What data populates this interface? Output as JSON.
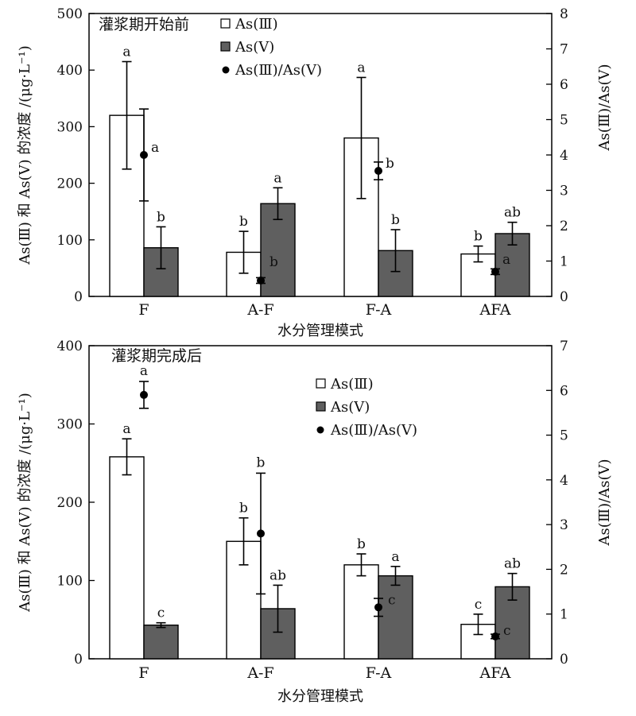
{
  "charts": [
    {
      "title": "灌浆期开始前",
      "xlabel": "水分管理模式",
      "ylabel": "As(Ⅲ) 和 As(Ⅴ) 的浓度 /(μg·L⁻¹)",
      "y2label": "As(Ⅲ)/As(Ⅴ)",
      "legend": [
        "As(Ⅲ)",
        "As(Ⅴ)",
        "As(Ⅲ)/As(Ⅴ)"
      ]
    },
    {
      "title": "灌浆期完成后",
      "xlabel": "水分管理模式",
      "ylabel": "As(Ⅲ) 和 As(Ⅴ) 的浓度 /(μg·L⁻¹)",
      "y2label": "As(Ⅲ)/As(Ⅴ)",
      "legend": [
        "As(Ⅲ)",
        "As(Ⅴ)",
        "As(Ⅲ)/As(Ⅴ)"
      ]
    }
  ],
  "chart_data": [
    {
      "type": "bar",
      "title": "灌浆期开始前",
      "xlabel": "水分管理模式",
      "ylabel": "As(Ⅲ) 和 As(Ⅴ) 的浓度 /(μg·L⁻¹)",
      "y2label": "As(Ⅲ)/As(Ⅴ)",
      "categories": [
        "F",
        "A-F",
        "F-A",
        "AFA"
      ],
      "ylim": [
        0,
        500
      ],
      "yticks": [
        0,
        100,
        200,
        300,
        400,
        500
      ],
      "y2lim": [
        0,
        8
      ],
      "y2ticks": [
        0,
        1,
        2,
        3,
        4,
        5,
        6,
        7,
        8
      ],
      "series": [
        {
          "name": "As(Ⅲ)",
          "values": [
            320,
            78,
            280,
            75
          ],
          "errors": [
            95,
            37,
            107,
            14
          ],
          "labels": [
            "a",
            "b",
            "a",
            "b"
          ]
        },
        {
          "name": "As(Ⅴ)",
          "values": [
            86,
            164,
            81,
            111
          ],
          "errors": [
            37,
            28,
            37,
            20
          ],
          "labels": [
            "b",
            "a",
            "b",
            "ab"
          ]
        },
        {
          "name": "As(Ⅲ)/As(Ⅴ)",
          "axis": "right",
          "values": [
            4.0,
            0.45,
            3.55,
            0.7
          ],
          "errors": [
            1.3,
            0.08,
            0.25,
            0.08
          ],
          "labels": [
            "a",
            "b",
            "b",
            "a"
          ]
        }
      ]
    },
    {
      "type": "bar",
      "title": "灌浆期完成后",
      "xlabel": "水分管理模式",
      "ylabel": "As(Ⅲ) 和 As(Ⅴ) 的浓度 /(μg·L⁻¹)",
      "y2label": "As(Ⅲ)/As(Ⅴ)",
      "categories": [
        "F",
        "A-F",
        "F-A",
        "AFA"
      ],
      "ylim": [
        0,
        400
      ],
      "yticks": [
        0,
        100,
        200,
        300,
        400
      ],
      "y2lim": [
        0,
        7
      ],
      "y2ticks": [
        0,
        1,
        2,
        3,
        4,
        5,
        6,
        7
      ],
      "series": [
        {
          "name": "As(Ⅲ)",
          "values": [
            258,
            150,
            120,
            44
          ],
          "errors": [
            23,
            30,
            14,
            13
          ],
          "labels": [
            "a",
            "b",
            "b",
            "c"
          ]
        },
        {
          "name": "As(Ⅴ)",
          "values": [
            43,
            64,
            106,
            92
          ],
          "errors": [
            3,
            30,
            12,
            17
          ],
          "labels": [
            "c",
            "ab",
            "a",
            "ab"
          ]
        },
        {
          "name": "As(Ⅲ)/As(Ⅴ)",
          "axis": "right",
          "values": [
            5.9,
            2.8,
            1.15,
            0.5
          ],
          "errors": [
            0.3,
            1.35,
            0.2,
            0.05
          ],
          "labels": [
            "a",
            "b",
            "c",
            "c"
          ]
        }
      ]
    }
  ]
}
